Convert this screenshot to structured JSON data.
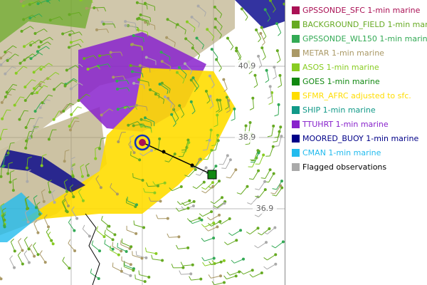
{
  "map": {
    "grid_labels": [
      "40.9",
      "38.9",
      "36.9"
    ],
    "legend": [
      {
        "label": "GPSSONDE_SFC 1-min marine",
        "color": "#aa1155",
        "text_color": "#aa1155"
      },
      {
        "label": "BACKGROUND_FIELD 1-min marine",
        "color": "#66aa22",
        "text_color": "#66aa22"
      },
      {
        "label": "GPSSONDE_WL150 1-min marine",
        "color": "#33aa55",
        "text_color": "#33aa55"
      },
      {
        "label": "METAR 1-min marine",
        "color": "#aa9966",
        "text_color": "#aa9966"
      },
      {
        "label": "ASOS 1-min marine",
        "color": "#88cc22",
        "text_color": "#88cc22"
      },
      {
        "label": "GOES 1-min marine",
        "color": "#118811",
        "text_color": "#118811"
      },
      {
        "label": "SFMR_AFRC adjusted to sfc.",
        "color": "#ffdd00",
        "text_color": "#ffdd00"
      },
      {
        "label": "SHIP 1-min marine",
        "color": "#119988",
        "text_color": "#119988"
      },
      {
        "label": "TTUHRT 1-min marine",
        "color": "#8822cc",
        "text_color": "#8822cc"
      },
      {
        "label": "MOORED_BUOY 1-min marine",
        "color": "#000088",
        "text_color": "#000088"
      },
      {
        "label": "CMAN 1-min marine",
        "color": "#22bbee",
        "text_color": "#22bbee"
      },
      {
        "label": "Flagged observations",
        "color": "#aaaaaa",
        "text_color": "#000000"
      }
    ]
  }
}
